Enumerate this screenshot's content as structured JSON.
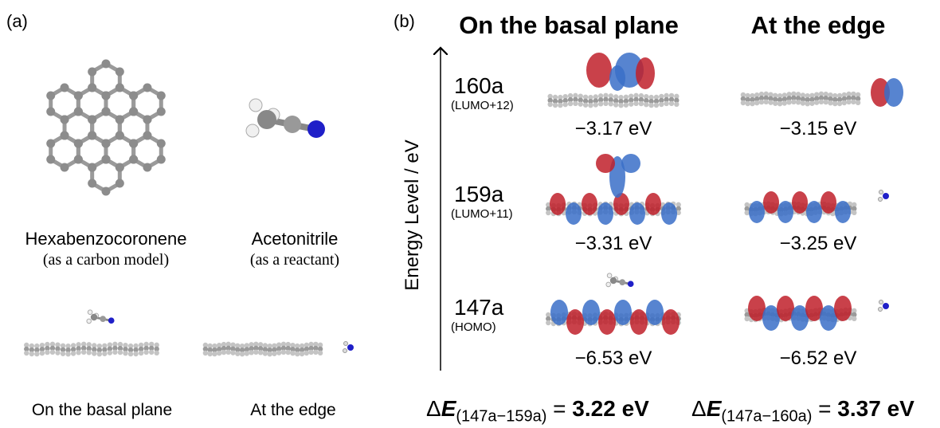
{
  "panel_a": {
    "label": "(a)",
    "molecules": [
      {
        "name": "Hexabenzocoronene",
        "note": "(as a carbon model)"
      },
      {
        "name": "Acetonitrile",
        "note": "(as a reactant)"
      }
    ],
    "configurations": [
      "On the basal plane",
      "At the edge"
    ]
  },
  "panel_b": {
    "label": "(b)",
    "columns": [
      "On the basal plane",
      "At the edge"
    ],
    "axis_label": "Energy Level / eV",
    "levels": [
      {
        "orbital": "160a",
        "note": "(LUMO+12)",
        "basal": "−3.17 eV",
        "edge": "−3.15 eV"
      },
      {
        "orbital": "159a",
        "note": "(LUMO+11)",
        "basal": "−3.31 eV",
        "edge": "−3.25 eV"
      },
      {
        "orbital": "147a",
        "note": "(HOMO)",
        "basal": "−6.53 eV",
        "edge": "−6.52 eV"
      }
    ],
    "gaps": [
      {
        "delta": "Δ",
        "variable": "E",
        "subscript": "(147a−159a)",
        "equals": "=",
        "value": "3.22 eV"
      },
      {
        "delta": "Δ",
        "variable": "E",
        "subscript": "(147a−160a)",
        "equals": "=",
        "value": "3.37 eV"
      }
    ]
  }
}
